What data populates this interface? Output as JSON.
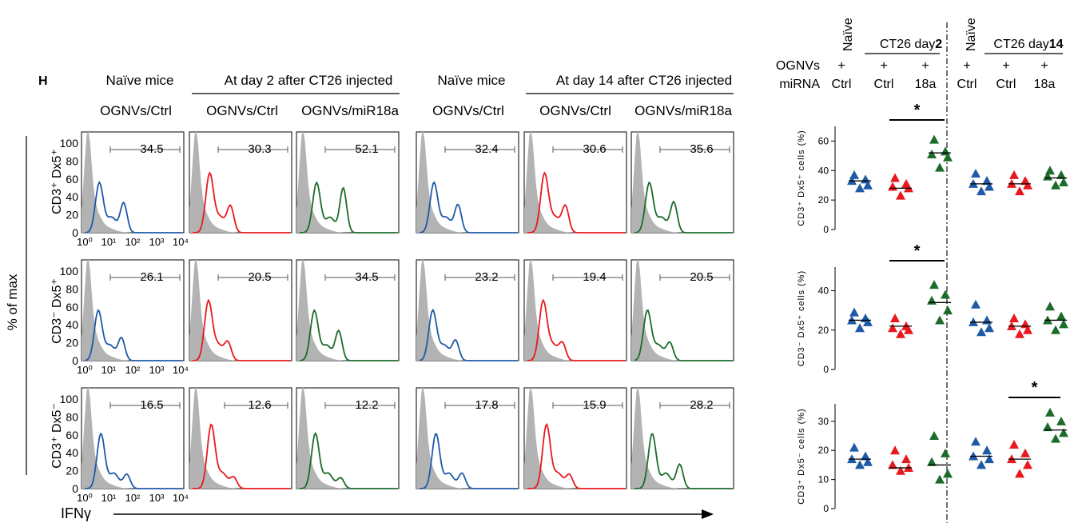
{
  "panel_label": "H",
  "y_axis_label": "% of max",
  "x_axis_label": "IFNγ",
  "histogram_y_ticks": [
    "100",
    "80",
    "60",
    "40",
    "20",
    "0"
  ],
  "histogram_x_ticks": [
    "10⁰",
    "10¹",
    "10²",
    "10³",
    "10⁴"
  ],
  "group_headers": [
    {
      "title": "Naïve mice",
      "subtitle": "OGNVs/Ctrl"
    },
    {
      "title": "At day 2 after CT26 injected",
      "subtitles": [
        "OGNVs/Ctrl",
        "OGNVs/miR18a"
      ]
    },
    {
      "title": "Naïve mice",
      "subtitle": "OGNVs/Ctrl"
    },
    {
      "title": "At day 14 after CT26 injected",
      "subtitles": [
        "OGNVs/Ctrl",
        "OGNVs/miR18a"
      ]
    }
  ],
  "histogram_rows": [
    {
      "label": "CD3⁺ Dx5⁺",
      "values": [
        "34.5",
        "30.3",
        "52.1",
        "32.4",
        "30.6",
        "35.6"
      ]
    },
    {
      "label": "CD3⁻ Dx5⁺",
      "values": [
        "26.1",
        "20.5",
        "34.5",
        "23.2",
        "19.4",
        "20.5"
      ]
    },
    {
      "label": "CD3⁺ Dx5⁻",
      "values": [
        "16.5",
        "12.6",
        "12.2",
        "17.8",
        "15.9",
        "28.2"
      ]
    }
  ],
  "histogram_colors": {
    "blue": "#1f5aa6",
    "red": "#e8191e",
    "green": "#1b6b2a",
    "isotype": "#b3b3b3"
  },
  "scatter_header": {
    "row1": [
      "Naïve",
      "CT26 day",
      "2",
      "Naïve",
      "CT26 day",
      "14"
    ],
    "ognvs_label": "OGNVs",
    "mirna_label": "miRNA",
    "plus": "+",
    "mirna_values": [
      "Ctrl",
      "Ctrl",
      "18a",
      "Ctrl",
      "Ctrl",
      "18a"
    ]
  },
  "significance_mark": "*",
  "chart_data": [
    {
      "type": "scatter",
      "ylabel": "CD3⁺ Dx5⁺ cells (%)",
      "ylim": [
        0,
        70
      ],
      "yticks": [
        "0",
        "20",
        "40",
        "60"
      ],
      "groups": [
        {
          "label": "Naïve Ctrl",
          "color": "#1f5aa6",
          "values": [
            37,
            34,
            33,
            30,
            28
          ],
          "mean": 33
        },
        {
          "label": "CT26 day2 Ctrl",
          "color": "#e8191e",
          "values": [
            35,
            31,
            29,
            28,
            23
          ],
          "mean": 28
        },
        {
          "label": "CT26 day2 18a",
          "color": "#1b6b2a",
          "values": [
            61,
            53,
            51,
            49,
            42
          ],
          "mean": 52
        },
        {
          "label": "Naïve Ctrl",
          "color": "#1f5aa6",
          "values": [
            38,
            33,
            31,
            29,
            26
          ],
          "mean": 31
        },
        {
          "label": "CT26 day14 Ctrl",
          "color": "#e8191e",
          "values": [
            37,
            33,
            31,
            30,
            26
          ],
          "mean": 31
        },
        {
          "label": "CT26 day14 18a",
          "color": "#1b6b2a",
          "values": [
            40,
            37,
            36,
            32,
            30
          ],
          "mean": 35
        }
      ],
      "significance": {
        "from": 1,
        "to": 2,
        "level": 1
      }
    },
    {
      "type": "scatter",
      "ylabel": "CD3⁻ Dx5⁺ cells (%)",
      "ylim": [
        0,
        52
      ],
      "yticks": [
        "0",
        "20",
        "40"
      ],
      "groups": [
        {
          "label": "Naïve Ctrl",
          "color": "#1f5aa6",
          "values": [
            29,
            26,
            25,
            24,
            21
          ],
          "mean": 25
        },
        {
          "label": "CT26 day2 Ctrl",
          "color": "#e8191e",
          "values": [
            26,
            22,
            21,
            20,
            18
          ],
          "mean": 22
        },
        {
          "label": "CT26 day2 18a",
          "color": "#1b6b2a",
          "values": [
            43,
            38,
            35,
            30,
            25
          ],
          "mean": 34
        },
        {
          "label": "Naïve Ctrl",
          "color": "#1f5aa6",
          "values": [
            33,
            25,
            24,
            21,
            19
          ],
          "mean": 24
        },
        {
          "label": "CT26 day14 Ctrl",
          "color": "#e8191e",
          "values": [
            26,
            23,
            22,
            20,
            18
          ],
          "mean": 22
        },
        {
          "label": "CT26 day14 18a",
          "color": "#1b6b2a",
          "values": [
            32,
            27,
            25,
            23,
            20
          ],
          "mean": 25
        }
      ],
      "significance": {
        "from": 1,
        "to": 2,
        "level": 1
      }
    },
    {
      "type": "scatter",
      "ylabel": "CD3⁺ Dx5⁻ cells (%)",
      "ylim": [
        0,
        36
      ],
      "yticks": [
        "0",
        "10",
        "20",
        "30"
      ],
      "groups": [
        {
          "label": "Naïve Ctrl",
          "color": "#1f5aa6",
          "values": [
            21,
            18,
            17,
            16,
            15
          ],
          "mean": 17
        },
        {
          "label": "CT26 day2 Ctrl",
          "color": "#e8191e",
          "values": [
            20,
            17,
            15,
            14,
            13
          ],
          "mean": 14
        },
        {
          "label": "CT26 day2 18a",
          "color": "#1b6b2a",
          "values": [
            25,
            19,
            16,
            12,
            10
          ],
          "mean": 15
        },
        {
          "label": "Naïve Ctrl",
          "color": "#1f5aa6",
          "values": [
            23,
            20,
            18,
            17,
            15
          ],
          "mean": 18
        },
        {
          "label": "CT26 day14 Ctrl",
          "color": "#e8191e",
          "values": [
            22,
            19,
            17,
            15,
            12
          ],
          "mean": 17
        },
        {
          "label": "CT26 day14 18a",
          "color": "#1b6b2a",
          "values": [
            33,
            30,
            28,
            26,
            24
          ],
          "mean": 27
        }
      ],
      "significance": {
        "from": 4,
        "to": 5,
        "level": 1
      }
    }
  ]
}
